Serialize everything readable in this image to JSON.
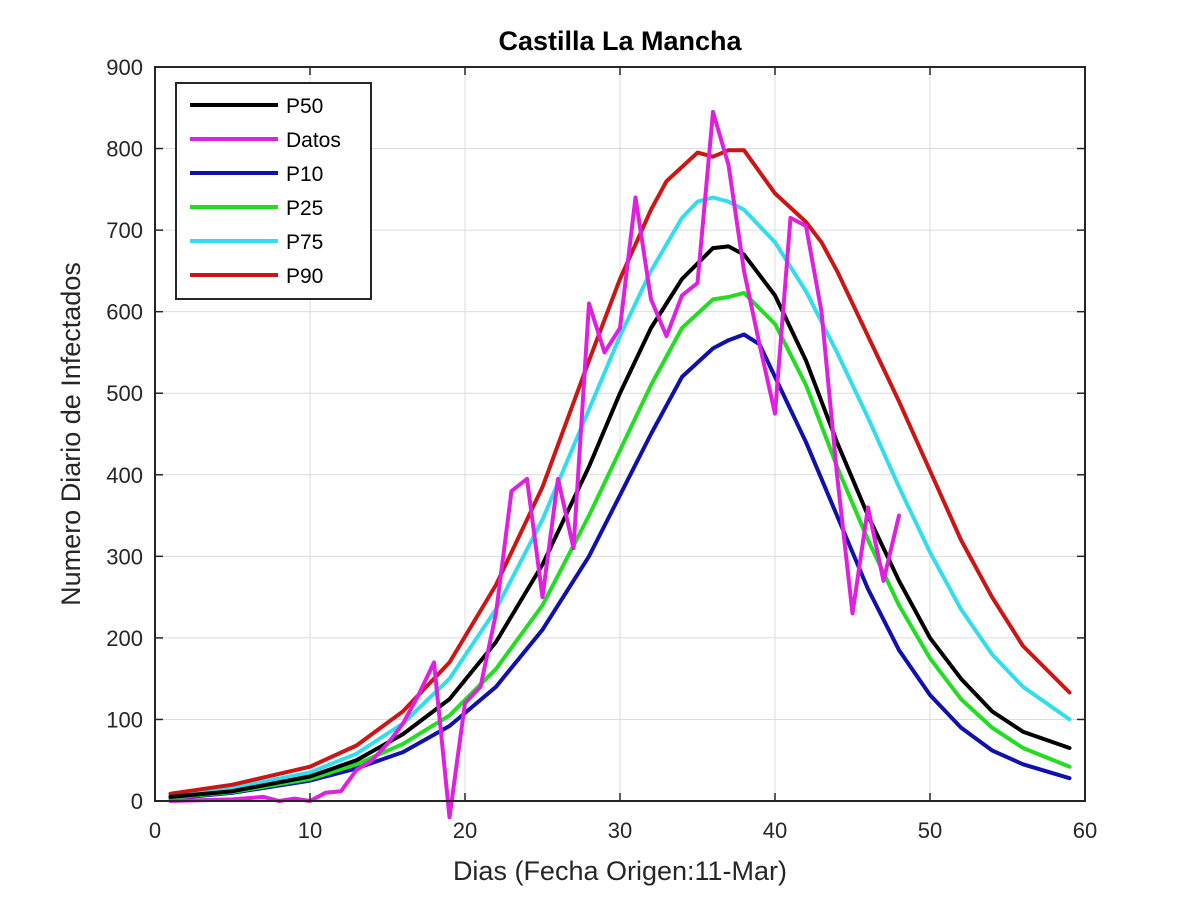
{
  "chart_data": {
    "type": "line",
    "title": "Castilla La Mancha",
    "xlabel": "Dias (Fecha Origen:11-Mar)",
    "ylabel": "Numero Diario de Infectados",
    "xlim": [
      0,
      60
    ],
    "ylim": [
      0,
      900
    ],
    "xticks": [
      0,
      10,
      20,
      30,
      40,
      50,
      60
    ],
    "yticks": [
      0,
      100,
      200,
      300,
      400,
      500,
      600,
      700,
      800,
      900
    ],
    "grid": true,
    "legend_position": "top-left",
    "series": [
      {
        "name": "P50",
        "color": "#000000",
        "x": [
          1,
          5,
          10,
          13,
          16,
          19,
          22,
          25,
          28,
          30,
          32,
          34,
          36,
          37,
          38,
          40,
          42,
          44,
          46,
          48,
          50,
          52,
          54,
          56,
          59
        ],
        "y": [
          5,
          12,
          30,
          50,
          82,
          125,
          195,
          290,
          410,
          500,
          580,
          640,
          678,
          680,
          670,
          620,
          540,
          440,
          350,
          270,
          200,
          150,
          110,
          85,
          65
        ]
      },
      {
        "name": " Datos",
        "color": "#e020e0",
        "x": [
          1,
          5,
          7,
          8,
          9,
          10,
          11,
          12,
          13,
          14,
          15,
          16,
          17,
          18,
          19,
          20,
          21,
          22,
          23,
          24,
          25,
          26,
          27,
          28,
          29,
          30,
          31,
          32,
          33,
          34,
          35,
          36,
          37,
          38,
          39,
          40,
          41,
          42,
          43,
          44,
          45,
          46,
          47,
          48
        ],
        "y": [
          0,
          2,
          5,
          0,
          3,
          0,
          10,
          12,
          38,
          50,
          70,
          95,
          130,
          170,
          -20,
          120,
          140,
          230,
          380,
          395,
          250,
          395,
          310,
          610,
          550,
          580,
          740,
          615,
          570,
          620,
          635,
          845,
          780,
          650,
          560,
          475,
          715,
          705,
          600,
          400,
          230,
          360,
          270,
          350
        ]
      },
      {
        "name": "P10",
        "color": "#1010aa",
        "x": [
          1,
          5,
          10,
          13,
          16,
          19,
          22,
          25,
          28,
          30,
          32,
          34,
          36,
          37,
          38,
          39,
          40,
          42,
          44,
          46,
          48,
          50,
          52,
          54,
          56,
          59
        ],
        "y": [
          3,
          10,
          25,
          40,
          60,
          92,
          140,
          210,
          300,
          375,
          450,
          520,
          555,
          565,
          572,
          560,
          520,
          440,
          350,
          260,
          185,
          130,
          90,
          62,
          45,
          28
        ]
      },
      {
        "name": "P25",
        "color": "#22dd22",
        "x": [
          1,
          5,
          10,
          13,
          16,
          19,
          22,
          25,
          28,
          30,
          32,
          34,
          36,
          37,
          38,
          40,
          42,
          44,
          46,
          48,
          50,
          52,
          54,
          56,
          59
        ],
        "y": [
          4,
          11,
          27,
          45,
          70,
          105,
          162,
          240,
          350,
          430,
          510,
          580,
          615,
          618,
          623,
          585,
          510,
          410,
          320,
          240,
          175,
          125,
          90,
          65,
          42
        ]
      },
      {
        "name": "P75",
        "color": "#33ddee",
        "x": [
          1,
          5,
          10,
          13,
          16,
          19,
          22,
          25,
          28,
          30,
          32,
          34,
          35,
          36,
          37,
          38,
          40,
          42,
          44,
          46,
          48,
          50,
          52,
          54,
          56,
          59
        ],
        "y": [
          7,
          16,
          35,
          58,
          95,
          150,
          235,
          345,
          480,
          570,
          650,
          715,
          735,
          740,
          735,
          725,
          685,
          625,
          550,
          470,
          385,
          305,
          235,
          180,
          140,
          100
        ]
      },
      {
        "name": "P90",
        "color": "#cc1515",
        "x": [
          1,
          5,
          10,
          13,
          16,
          19,
          22,
          25,
          28,
          30,
          32,
          33,
          35,
          36,
          37,
          38,
          40,
          42,
          43,
          44,
          46,
          48,
          50,
          52,
          54,
          56,
          59
        ],
        "y": [
          9,
          20,
          42,
          68,
          110,
          170,
          265,
          385,
          540,
          640,
          725,
          760,
          795,
          790,
          798,
          798,
          745,
          710,
          685,
          650,
          570,
          490,
          405,
          320,
          250,
          190,
          133
        ]
      }
    ]
  }
}
